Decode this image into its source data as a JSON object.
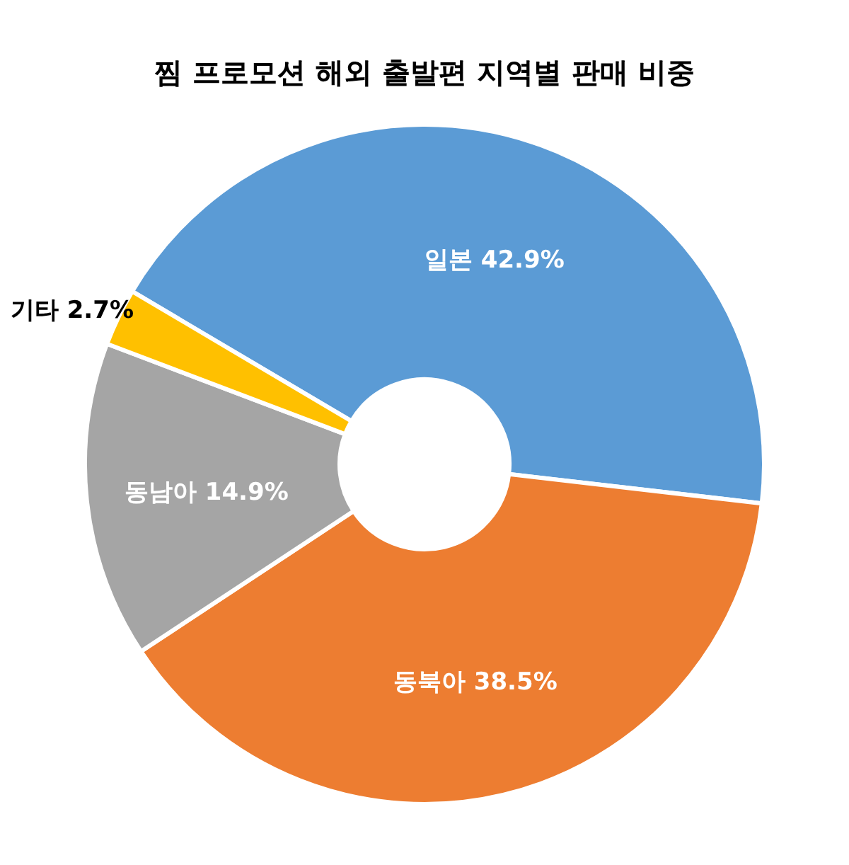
{
  "chart_data": {
    "type": "donut",
    "title": "찜 프로모션  해외 출발편 지역별 판매 비중",
    "categories": [
      "일본",
      "동북아",
      "동남아",
      "기타"
    ],
    "values": [
      42.9,
      38.5,
      14.9,
      2.7
    ],
    "colors": [
      "#5b9bd5",
      "#ed7d31",
      "#a5a5a5",
      "#ffc000"
    ],
    "value_labels": [
      "42.9%",
      "38.5%",
      "14.9%",
      "2.7%"
    ]
  }
}
